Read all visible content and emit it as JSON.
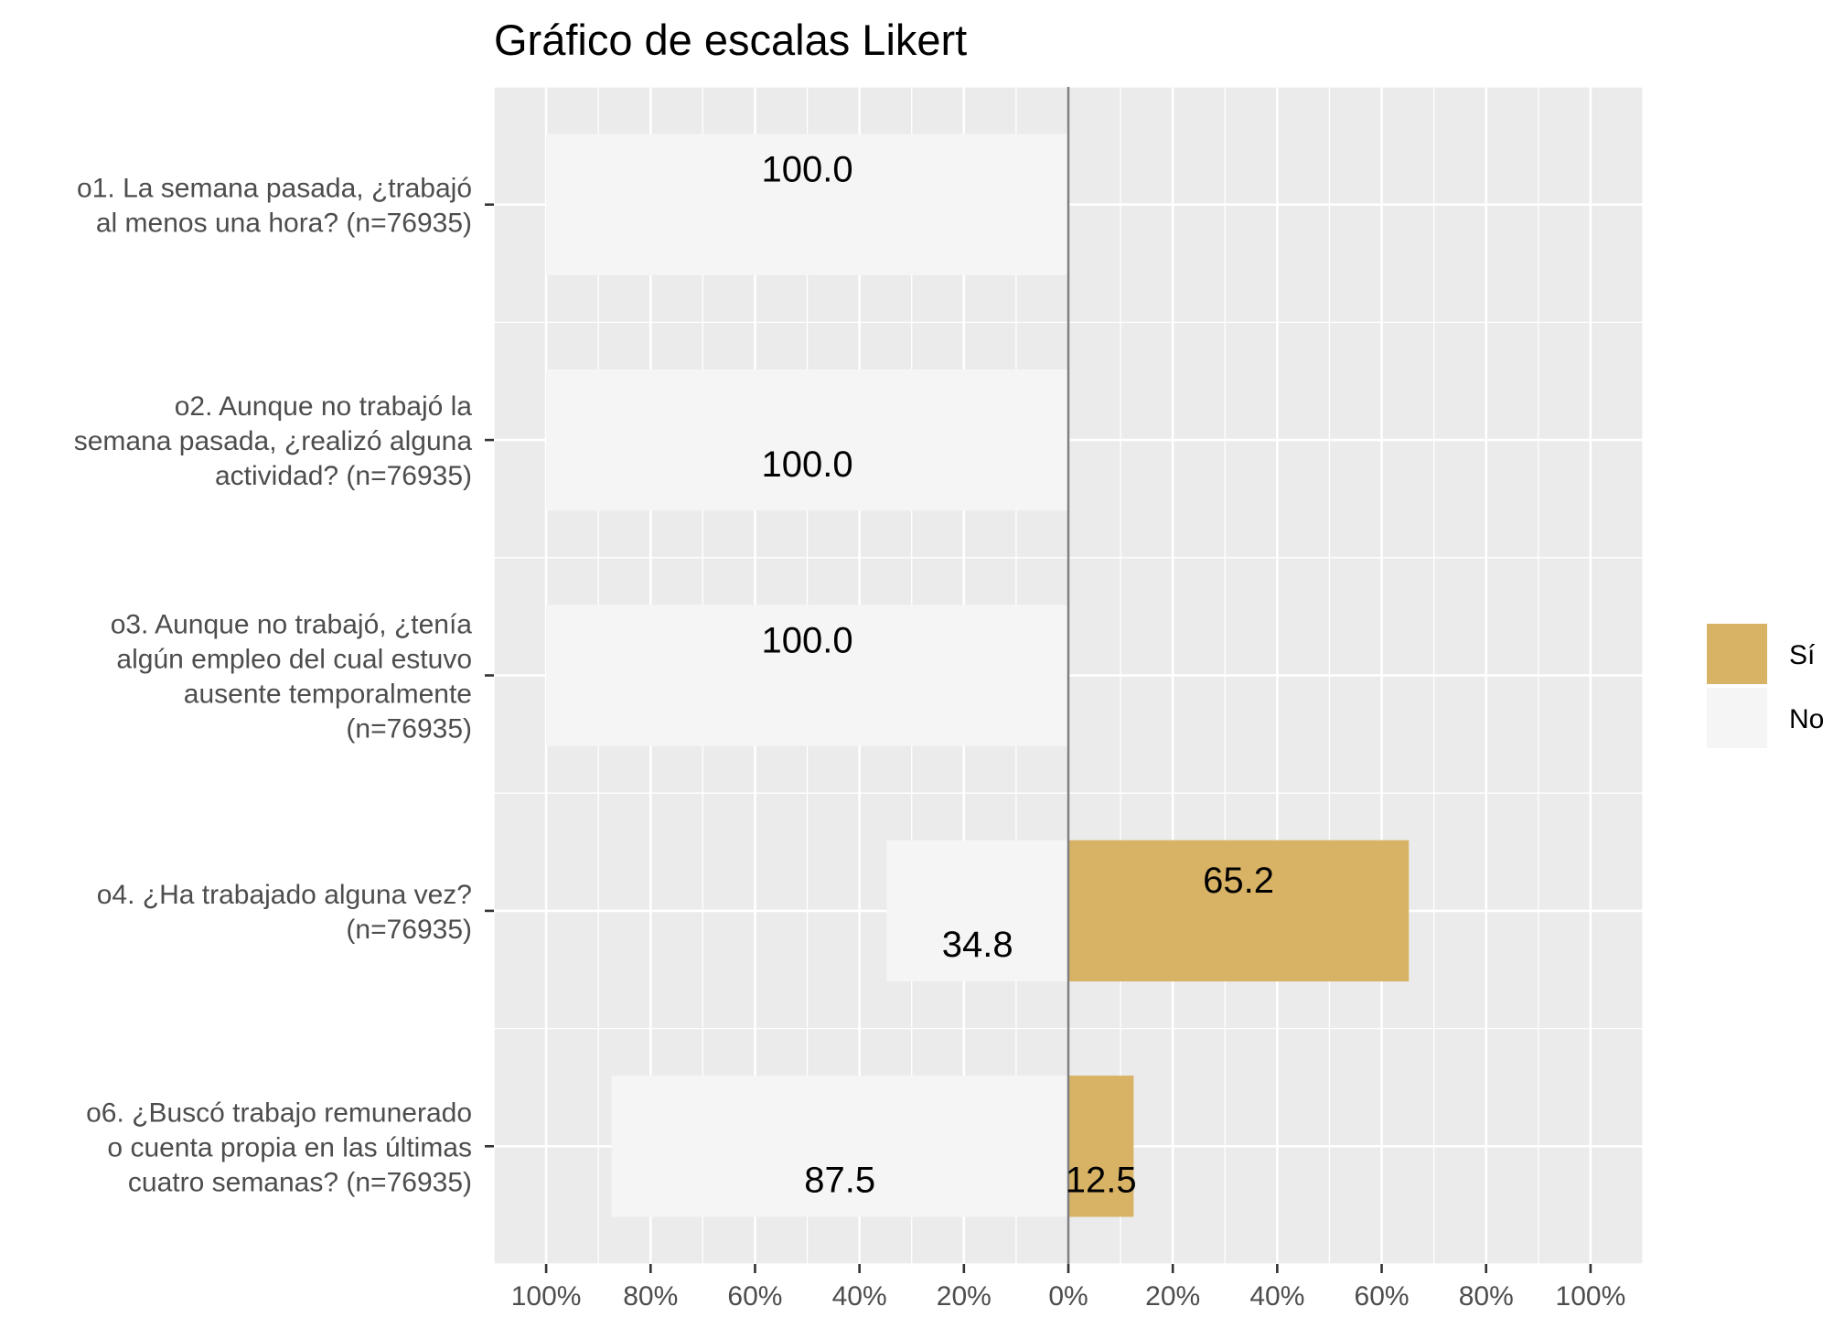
{
  "chart_data": {
    "type": "bar",
    "orientation": "horizontal-diverging",
    "title": "Gráfico de escalas Likert",
    "categories": [
      [
        "o1. La semana pasada, ¿trabajó",
        "al menos una hora? (n=76935)"
      ],
      [
        "o2. Aunque no trabajó la",
        "semana pasada, ¿realizó alguna",
        "actividad? (n=76935)"
      ],
      [
        "o3. Aunque no trabajó, ¿tenía",
        "algún empleo del cual estuvo",
        "ausente temporalmente",
        "(n=76935)"
      ],
      [
        "o4. ¿Ha trabajado alguna vez?",
        "(n=76935)"
      ],
      [
        "o6. ¿Buscó trabajo remunerado",
        "o cuenta propia en las últimas",
        "cuatro semanas? (n=76935)"
      ]
    ],
    "series": [
      {
        "name": "Sí",
        "color": "#d8b365",
        "values": [
          0,
          0,
          0,
          65.2,
          12.5
        ],
        "labels": [
          "",
          "",
          "",
          "65.2",
          "12.5"
        ]
      },
      {
        "name": "No",
        "color": "#f5f5f5",
        "values": [
          100.0,
          100.0,
          100.0,
          34.8,
          87.5
        ],
        "labels": [
          "100.0",
          "100.0",
          "100.0",
          "34.8",
          "87.5"
        ]
      }
    ],
    "x_ticks": [
      "100%",
      "80%",
      "60%",
      "40%",
      "20%",
      "0%",
      "20%",
      "40%",
      "60%",
      "80%",
      "100%"
    ],
    "xlim": [
      -110,
      110
    ],
    "grid": true,
    "legend_position": "right",
    "legend": [
      {
        "label": "Sí",
        "color": "#d8b365"
      },
      {
        "label": "No",
        "color": "#f5f5f5"
      }
    ]
  }
}
